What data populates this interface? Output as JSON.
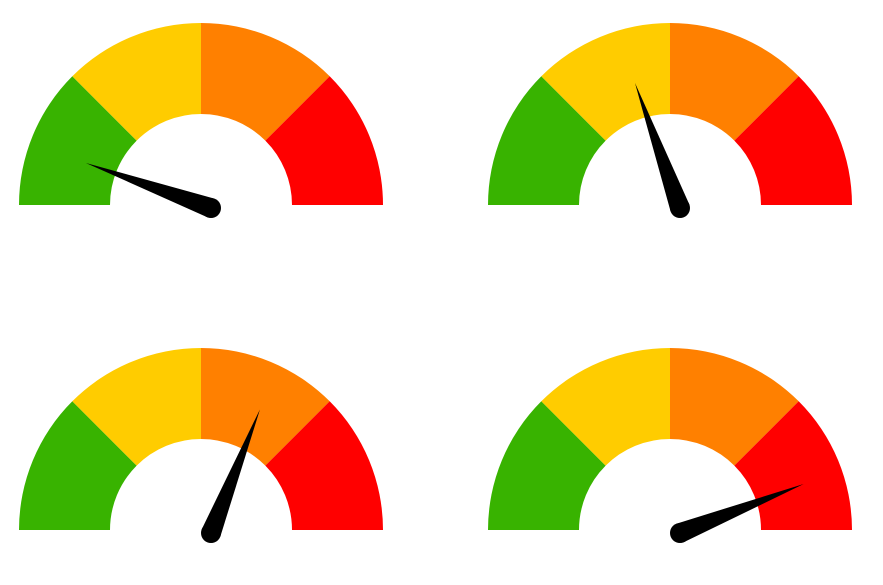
{
  "segments": [
    {
      "name": "green-zone",
      "color": "#38b300"
    },
    {
      "name": "yellow-zone",
      "color": "#ffcc00"
    },
    {
      "name": "orange-zone",
      "color": "#ff8000"
    },
    {
      "name": "red-zone",
      "color": "#ff0000"
    }
  ],
  "needle_color": "#000000",
  "gauges": [
    {
      "name": "gauge-low",
      "level_percent": 11
    },
    {
      "name": "gauge-medium",
      "level_percent": 39
    },
    {
      "name": "gauge-high",
      "level_percent": 62
    },
    {
      "name": "gauge-very-high",
      "level_percent": 88
    }
  ]
}
